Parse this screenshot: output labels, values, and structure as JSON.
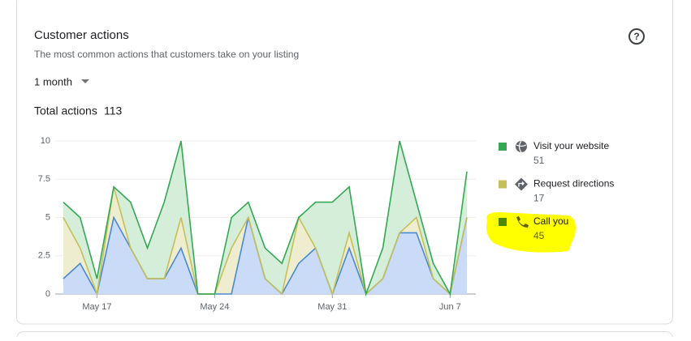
{
  "header": {
    "title": "Customer actions",
    "subtitle": "The most common actions that customers take on your listing",
    "period": "1 month",
    "total_label": "Total actions",
    "total": 113
  },
  "chart_data": {
    "type": "stacked_area",
    "categories": [
      null,
      null,
      "May 17",
      null,
      null,
      null,
      null,
      null,
      null,
      "May 24",
      null,
      null,
      null,
      null,
      null,
      null,
      "May 31",
      null,
      null,
      null,
      null,
      null,
      null,
      "Jun 7",
      null
    ],
    "series": [
      {
        "name": "Visit your website",
        "total": 51,
        "color": "#34a853",
        "fill": "#d5eed9",
        "values": [
          1,
          2,
          1,
          0,
          3,
          2,
          5,
          5,
          0,
          0,
          2,
          1,
          2,
          2,
          0,
          3,
          6,
          3,
          0,
          2,
          6,
          1,
          1,
          0,
          3
        ]
      },
      {
        "name": "Request directions",
        "total": 17,
        "color": "#c5bf5a",
        "fill": "#efedcf",
        "values": [
          4,
          1,
          0,
          2,
          0,
          0,
          0,
          2,
          0,
          0,
          3,
          0,
          0,
          0,
          3,
          0,
          0,
          1,
          0,
          0,
          0,
          1,
          0,
          0,
          0
        ]
      },
      {
        "name": "Call you",
        "total": 45,
        "color": "#4a89d0",
        "fill": "#c9dbf7",
        "values": [
          1,
          2,
          0,
          5,
          3,
          1,
          1,
          3,
          0,
          0,
          0,
          5,
          1,
          0,
          2,
          3,
          0,
          3,
          0,
          1,
          4,
          4,
          1,
          0,
          5
        ]
      }
    ],
    "stack_order": [
      2,
      1,
      0
    ],
    "ylim": [
      0,
      10
    ],
    "yticks": [
      0,
      2.5,
      5,
      7.5,
      10
    ],
    "grid": true
  }
}
